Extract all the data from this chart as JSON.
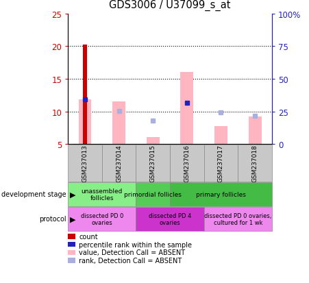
{
  "title": "GDS3006 / U37099_s_at",
  "samples": [
    "GSM237013",
    "GSM237014",
    "GSM237015",
    "GSM237016",
    "GSM237017",
    "GSM237018"
  ],
  "ylim_left": [
    5,
    25
  ],
  "ylim_right": [
    0,
    100
  ],
  "yticks_left": [
    5,
    10,
    15,
    20,
    25
  ],
  "yticks_right": [
    0,
    25,
    50,
    75,
    100
  ],
  "count_values": [
    20.2,
    null,
    null,
    null,
    null,
    null
  ],
  "count_color": "#cc0000",
  "rank_values": [
    11.8,
    null,
    null,
    11.3,
    null,
    null
  ],
  "rank_color": "#2222bb",
  "value_absent": [
    11.8,
    11.5,
    6.1,
    16.0,
    7.7,
    9.2
  ],
  "value_absent_color": "#ffb6c1",
  "rank_absent": [
    null,
    10.1,
    8.6,
    null,
    9.8,
    9.3
  ],
  "rank_absent_color": "#aab0dd",
  "dev_groups": [
    {
      "label": "unassembled\nfollicles",
      "start": 0,
      "end": 1,
      "color": "#88ee88"
    },
    {
      "label": "primordial follicles",
      "start": 2,
      "end": 2,
      "color": "#55cc55"
    },
    {
      "label": "primary follicles",
      "start": 3,
      "end": 5,
      "color": "#44bb44"
    }
  ],
  "prot_groups": [
    {
      "label": "dissected PD 0\novaries",
      "start": 0,
      "end": 1,
      "color": "#ee88ee"
    },
    {
      "label": "dissected PD 4\novaries",
      "start": 2,
      "end": 3,
      "color": "#cc33cc"
    },
    {
      "label": "dissected PD 0 ovaries,\ncultured for 1 wk",
      "start": 4,
      "end": 5,
      "color": "#ee88ee"
    }
  ],
  "axis_color_left": "#cc0000",
  "axis_color_right": "#2222bb",
  "plot_facecolor": "#ffffff",
  "sample_box_color": "#c8c8c8",
  "fig_bg": "#ffffff"
}
